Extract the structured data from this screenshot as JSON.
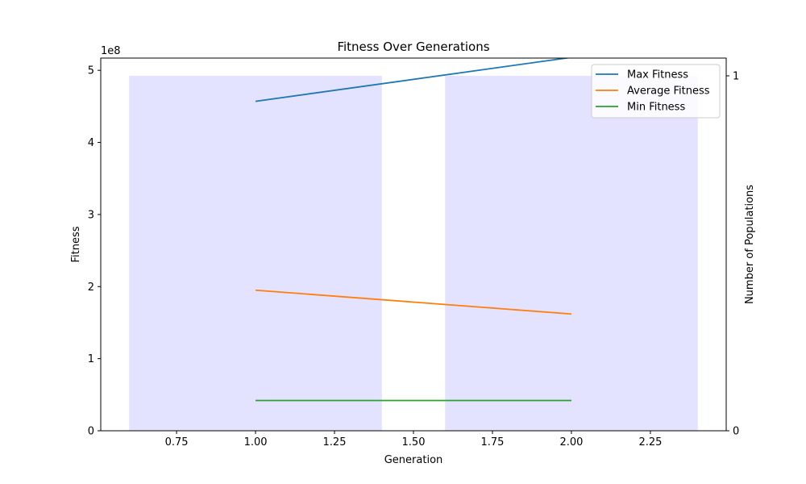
{
  "chart_data": {
    "type": "line",
    "title": "Fitness Over Generations",
    "xlabel": "Generation",
    "ylabel": "Fitness",
    "y2label": "Number of Populations",
    "y_offset_label": "1e8",
    "xlim": [
      0.51,
      2.49
    ],
    "ylim": [
      0,
      5.17
    ],
    "y2lim": [
      0,
      1.05
    ],
    "x_ticks": [
      0.75,
      1.0,
      1.25,
      1.5,
      1.75,
      2.0,
      2.25
    ],
    "x_tick_labels": [
      "0.75",
      "1.00",
      "1.25",
      "1.50",
      "1.75",
      "2.00",
      "2.25"
    ],
    "y_ticks": [
      0,
      1,
      2,
      3,
      4,
      5
    ],
    "y_tick_labels": [
      "0",
      "1",
      "2",
      "3",
      "4",
      "5"
    ],
    "y2_ticks": [
      0,
      1
    ],
    "y2_tick_labels": [
      "0",
      "1"
    ],
    "bars": {
      "name": "Number of Populations",
      "x": [
        1,
        2
      ],
      "values": [
        1,
        1
      ],
      "width": 0.8,
      "color": "#e3e3ff"
    },
    "x": [
      1,
      2
    ],
    "series": [
      {
        "name": "Max Fitness",
        "values": [
          4.57,
          5.18
        ],
        "color": "#1f77b4"
      },
      {
        "name": "Average Fitness",
        "values": [
          1.95,
          1.62
        ],
        "color": "#ff7f0e"
      },
      {
        "name": "Min Fitness",
        "values": [
          0.42,
          0.42
        ],
        "color": "#2ca02c"
      }
    ],
    "legend": "top-right",
    "grid": false
  }
}
